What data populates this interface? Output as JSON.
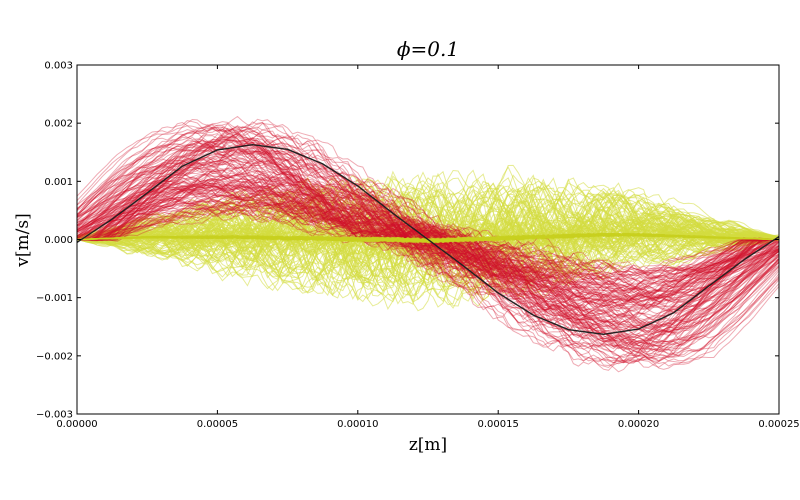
{
  "chart_data": {
    "type": "line",
    "title": "ϕ=0.1",
    "xlabel": "z[m]",
    "ylabel": "v[m/s]",
    "xlim": [
      0,
      0.00025
    ],
    "ylim": [
      -0.003,
      0.003
    ],
    "x_ticks": [
      0,
      5e-05,
      0.0001,
      0.00015,
      0.0002,
      0.00025
    ],
    "x_tick_labels": [
      "0.00000",
      "0.00005",
      "0.00010",
      "0.00015",
      "0.00020",
      "0.00025"
    ],
    "y_ticks": [
      -0.003,
      -0.002,
      -0.001,
      0,
      0.001,
      0.002,
      0.003
    ],
    "y_tick_labels": [
      "−0.003",
      "−0.002",
      "−0.001",
      "0.000",
      "0.001",
      "0.002",
      "0.003"
    ],
    "grid": false,
    "series": [
      {
        "role": "reference-sine",
        "color": "#222222",
        "x": [
          0.0,
          1.25e-05,
          2.5e-05,
          3.75e-05,
          5e-05,
          6.25e-05,
          7.5e-05,
          8.75e-05,
          0.0001,
          0.0001125,
          0.000125,
          0.0001375,
          0.00015,
          0.0001625,
          0.000175,
          0.0001875,
          0.0002,
          0.0002125,
          0.000225,
          0.0002375,
          0.00025
        ],
        "y": [
          -5e-05,
          0.00035,
          0.0008,
          0.00126,
          0.00154,
          0.00163,
          0.00155,
          0.0013,
          0.00092,
          0.00045,
          0.0,
          -0.00045,
          -0.00092,
          -0.0013,
          -0.00155,
          -0.00163,
          -0.00154,
          -0.00126,
          -0.0008,
          -0.00035,
          5e-05
        ]
      },
      {
        "role": "ensemble-red",
        "color": "#d0102a",
        "count": 150,
        "mean_x": [
          0.0,
          1.25e-05,
          2.5e-05,
          3.75e-05,
          5e-05,
          6.25e-05,
          7.5e-05,
          8.75e-05,
          0.0001,
          0.0001125,
          0.000125,
          0.0001375,
          0.00015,
          0.0001625,
          0.000175,
          0.0001875,
          0.0002,
          0.0002125,
          0.000225,
          0.0002375,
          0.00025
        ],
        "mean_y": [
          0.0,
          0.0005,
          0.00095,
          0.00125,
          0.0014,
          0.0013,
          0.0011,
          0.0008,
          0.0005,
          0.0002,
          0.0,
          -0.0003,
          -0.0006,
          -0.0009,
          -0.0012,
          -0.0014,
          -0.0015,
          -0.0014,
          -0.001,
          -0.0005,
          0.0
        ]
      },
      {
        "role": "ensemble-yellow",
        "color": "#d4dc40",
        "count": 120,
        "mean_x": [
          0.0,
          1.25e-05,
          2.5e-05,
          3.75e-05,
          5e-05,
          6.25e-05,
          7.5e-05,
          8.75e-05,
          0.0001,
          0.0001125,
          0.000125,
          0.0001375,
          0.00015,
          0.0001625,
          0.000175,
          0.0001875,
          0.0002,
          0.0002125,
          0.000225,
          0.0002375,
          0.00025
        ],
        "mean_y": [
          0.0,
          5e-05,
          0.0001,
          0.0001,
          0.0001,
          0.0001,
          5e-05,
          5e-05,
          0.0,
          0.0,
          -5e-05,
          0.0,
          5e-05,
          0.0001,
          0.00015,
          0.0002,
          0.0002,
          0.00015,
          0.0001,
          5e-05,
          0.0
        ]
      }
    ]
  }
}
